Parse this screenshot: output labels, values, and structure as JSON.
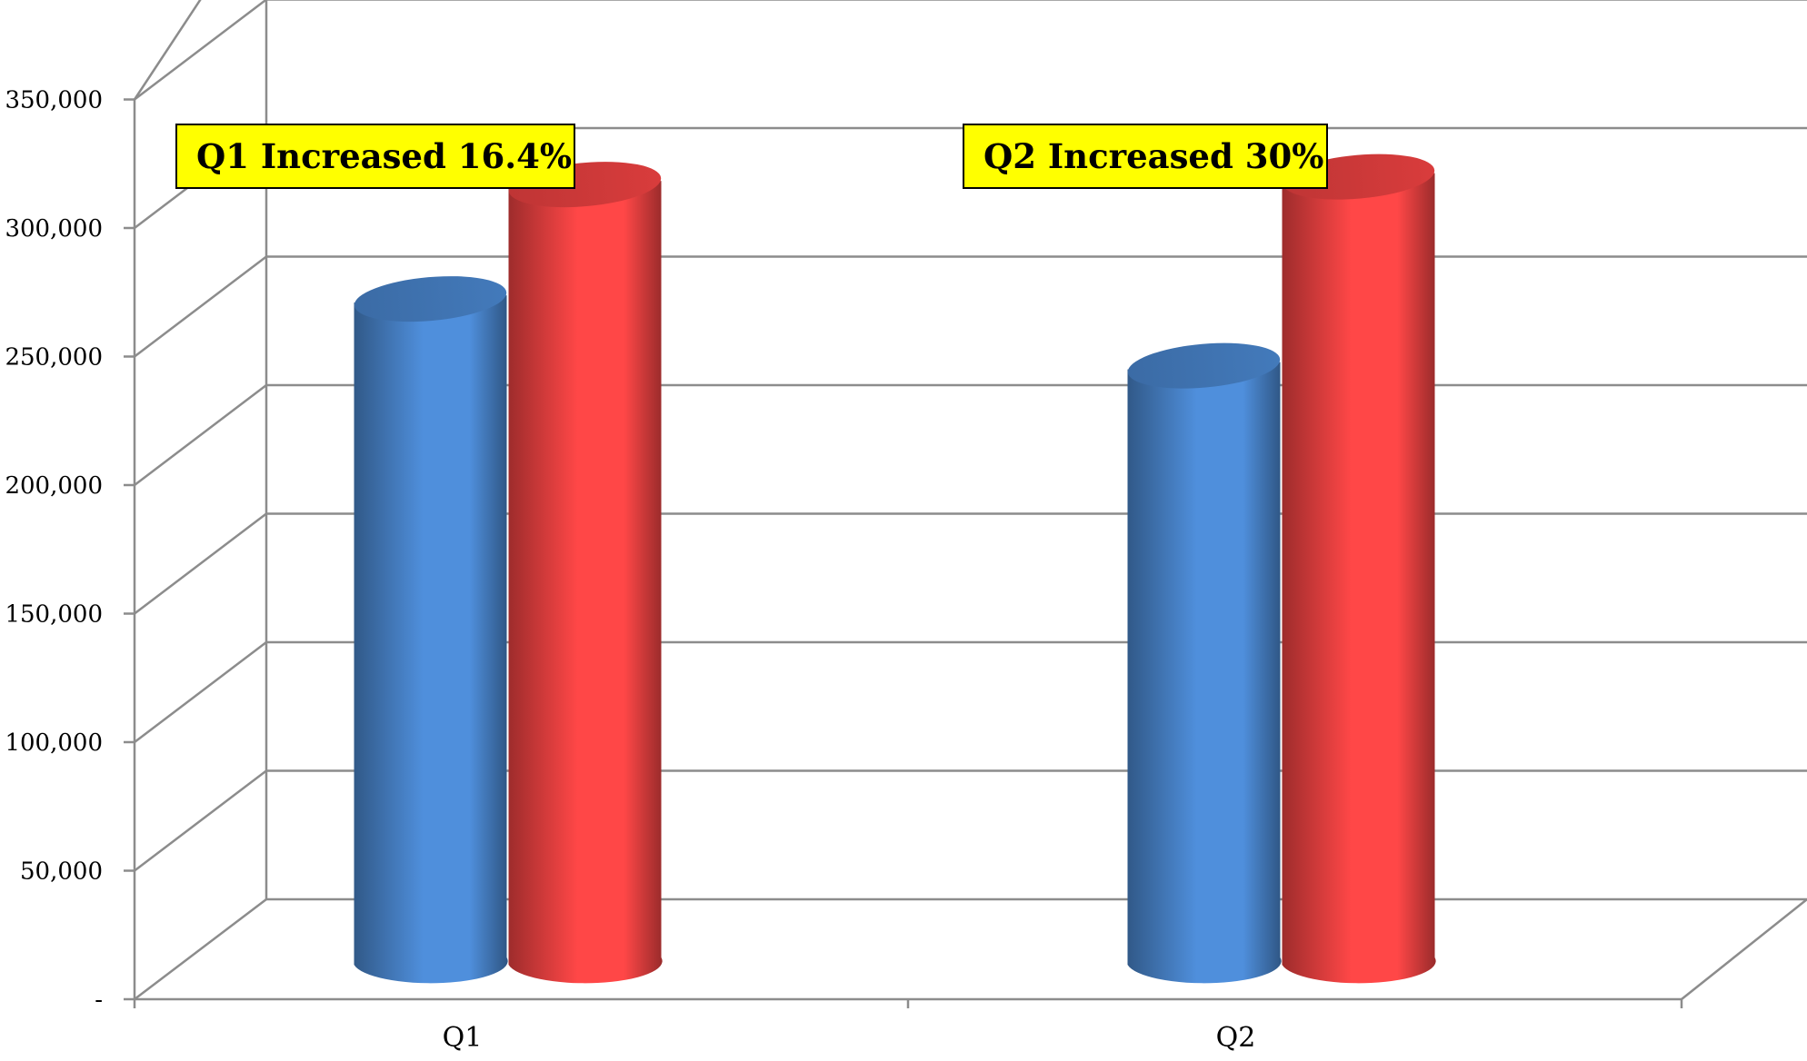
{
  "chart_data": {
    "type": "bar",
    "categories": [
      "Q1",
      "Q2"
    ],
    "series": [
      {
        "values": [
          271000,
          245000
        ],
        "color": "#4f8fdc"
      },
      {
        "values": [
          315500,
          318500
        ],
        "color": "#ff4747"
      }
    ],
    "ylim": [
      0,
      350000
    ],
    "yticks": [
      0,
      50000,
      100000,
      150000,
      200000,
      250000,
      300000,
      350000
    ],
    "ytick_labels": [
      "-",
      "50,000",
      "100,000",
      "150,000",
      "200,000",
      "250,000",
      "300,000",
      "350,000"
    ],
    "grid": true,
    "style": "3d-cylinder",
    "annotations": [
      {
        "text": "Q1 Increased 16.4%",
        "category": "Q1"
      },
      {
        "text": "Q2 Increased 30%",
        "category": "Q2"
      }
    ]
  }
}
